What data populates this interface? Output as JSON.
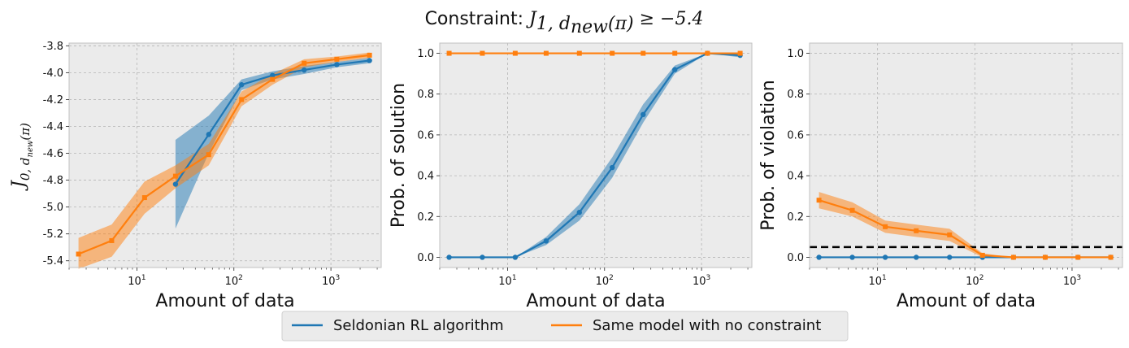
{
  "figure": {
    "title_prefix": "Constraint: ",
    "title_math": {
      "base": "J",
      "sub_main": "1, d",
      "sub_sub": "new",
      "sub_tail": "(π)",
      "rel": " ≥ −5.4"
    }
  },
  "legend": {
    "location": "bottom-center",
    "entries": [
      {
        "label": "Seldonian RL algorithm",
        "color": "#1f77b4"
      },
      {
        "label": "Same model with no constraint",
        "color": "#ff7f0e"
      }
    ]
  },
  "chart_data": [
    {
      "type": "line",
      "xlabel": "Amount of data",
      "ylabel_math": {
        "base": "J",
        "sub_main": "0, d",
        "sub_sub": "new",
        "sub_tail": "(π)"
      },
      "xscale": "log",
      "xlim": [
        2.0,
        3300
      ],
      "ylim": [
        -5.45,
        -3.78
      ],
      "grid": true,
      "x_ticks": [
        {
          "v": 10,
          "label": "10",
          "exp": "1"
        },
        {
          "v": 100,
          "label": "10",
          "exp": "2"
        },
        {
          "v": 1000,
          "label": "10",
          "exp": "3"
        }
      ],
      "y_ticks": [
        "-5.4",
        "-5.2",
        "-5.0",
        "-4.8",
        "-4.6",
        "-4.4",
        "-4.2",
        "-4.0",
        "-3.8"
      ],
      "series": [
        {
          "name": "Seldonian RL algorithm",
          "color": "#1f77b4",
          "marker": "circle",
          "x": [
            25,
            55,
            120,
            250,
            530,
            1150,
            2500
          ],
          "y": [
            -4.83,
            -4.46,
            -4.09,
            -4.02,
            -3.98,
            -3.94,
            -3.91
          ],
          "lower": [
            -5.16,
            -4.6,
            -4.13,
            -4.05,
            -4.01,
            -3.96,
            -3.93
          ],
          "upper": [
            -4.5,
            -4.32,
            -4.05,
            -3.99,
            -3.95,
            -3.92,
            -3.89
          ]
        },
        {
          "name": "Same model with no constraint",
          "color": "#ff7f0e",
          "marker": "square",
          "x": [
            2.5,
            5.5,
            12,
            25,
            55,
            120,
            250,
            530,
            1150,
            2500
          ],
          "y": [
            -5.35,
            -5.25,
            -4.93,
            -4.77,
            -4.61,
            -4.2,
            -4.05,
            -3.93,
            -3.9,
            -3.87
          ],
          "lower": [
            -5.46,
            -5.37,
            -5.05,
            -4.86,
            -4.69,
            -4.25,
            -4.09,
            -3.96,
            -3.92,
            -3.89
          ],
          "upper": [
            -5.23,
            -5.13,
            -4.81,
            -4.69,
            -4.53,
            -4.14,
            -4.01,
            -3.9,
            -3.88,
            -3.85
          ]
        }
      ]
    },
    {
      "type": "line",
      "xlabel": "Amount of data",
      "ylabel": "Prob. of solution",
      "xscale": "log",
      "xlim": [
        2.0,
        3300
      ],
      "ylim": [
        -0.05,
        1.05
      ],
      "grid": true,
      "x_ticks": [
        {
          "v": 10,
          "label": "10",
          "exp": "1"
        },
        {
          "v": 100,
          "label": "10",
          "exp": "2"
        },
        {
          "v": 1000,
          "label": "10",
          "exp": "3"
        }
      ],
      "y_ticks": [
        "0.0",
        "0.2",
        "0.4",
        "0.6",
        "0.8",
        "1.0"
      ],
      "series": [
        {
          "name": "Seldonian RL algorithm",
          "color": "#1f77b4",
          "marker": "circle",
          "x": [
            2.5,
            5.5,
            12,
            25,
            55,
            120,
            250,
            530,
            1150,
            2500
          ],
          "y": [
            0.0,
            0.0,
            0.0,
            0.08,
            0.22,
            0.44,
            0.7,
            0.92,
            1.0,
            0.99
          ],
          "lower": [
            0.0,
            0.0,
            0.0,
            0.06,
            0.18,
            0.39,
            0.66,
            0.9,
            1.0,
            0.98
          ],
          "upper": [
            0.0,
            0.0,
            0.0,
            0.1,
            0.26,
            0.49,
            0.75,
            0.94,
            1.0,
            1.0
          ]
        },
        {
          "name": "Same model with no constraint",
          "color": "#ff7f0e",
          "marker": "square",
          "x": [
            2.5,
            5.5,
            12,
            25,
            55,
            120,
            250,
            530,
            1150,
            2500
          ],
          "y": [
            1.0,
            1.0,
            1.0,
            1.0,
            1.0,
            1.0,
            1.0,
            1.0,
            1.0,
            1.0
          ],
          "lower": [
            1.0,
            1.0,
            1.0,
            1.0,
            1.0,
            1.0,
            1.0,
            1.0,
            1.0,
            1.0
          ],
          "upper": [
            1.0,
            1.0,
            1.0,
            1.0,
            1.0,
            1.0,
            1.0,
            1.0,
            1.0,
            1.0
          ]
        }
      ]
    },
    {
      "type": "line",
      "xlabel": "Amount of data",
      "ylabel": "Prob. of violation",
      "xscale": "log",
      "xlim": [
        2.0,
        3300
      ],
      "ylim": [
        -0.05,
        1.05
      ],
      "grid": true,
      "x_ticks": [
        {
          "v": 10,
          "label": "10",
          "exp": "1"
        },
        {
          "v": 100,
          "label": "10",
          "exp": "2"
        },
        {
          "v": 1000,
          "label": "10",
          "exp": "3"
        }
      ],
      "y_ticks": [
        "0.0",
        "0.2",
        "0.4",
        "0.6",
        "0.8",
        "1.0"
      ],
      "hline": {
        "y": 0.05,
        "style": "dashed",
        "color": "#000000"
      },
      "series": [
        {
          "name": "Seldonian RL algorithm",
          "color": "#1f77b4",
          "marker": "circle",
          "x": [
            2.5,
            5.5,
            12,
            25,
            55,
            120,
            250,
            530,
            1150,
            2500
          ],
          "y": [
            0.0,
            0.0,
            0.0,
            0.0,
            0.0,
            0.0,
            0.0,
            0.0,
            0.0,
            0.0
          ],
          "lower": [
            0.0,
            0.0,
            0.0,
            0.0,
            0.0,
            0.0,
            0.0,
            0.0,
            0.0,
            0.0
          ],
          "upper": [
            0.0,
            0.0,
            0.0,
            0.0,
            0.0,
            0.0,
            0.0,
            0.0,
            0.0,
            0.0
          ]
        },
        {
          "name": "Same model with no constraint",
          "color": "#ff7f0e",
          "marker": "square",
          "x": [
            2.5,
            5.5,
            12,
            25,
            55,
            120,
            250,
            530,
            1150,
            2500
          ],
          "y": [
            0.28,
            0.23,
            0.15,
            0.13,
            0.11,
            0.01,
            0.0,
            0.0,
            0.0,
            0.0
          ],
          "lower": [
            0.24,
            0.2,
            0.12,
            0.1,
            0.08,
            0.0,
            0.0,
            0.0,
            0.0,
            0.0
          ],
          "upper": [
            0.32,
            0.27,
            0.18,
            0.16,
            0.14,
            0.02,
            0.0,
            0.0,
            0.0,
            0.0
          ]
        }
      ]
    }
  ]
}
